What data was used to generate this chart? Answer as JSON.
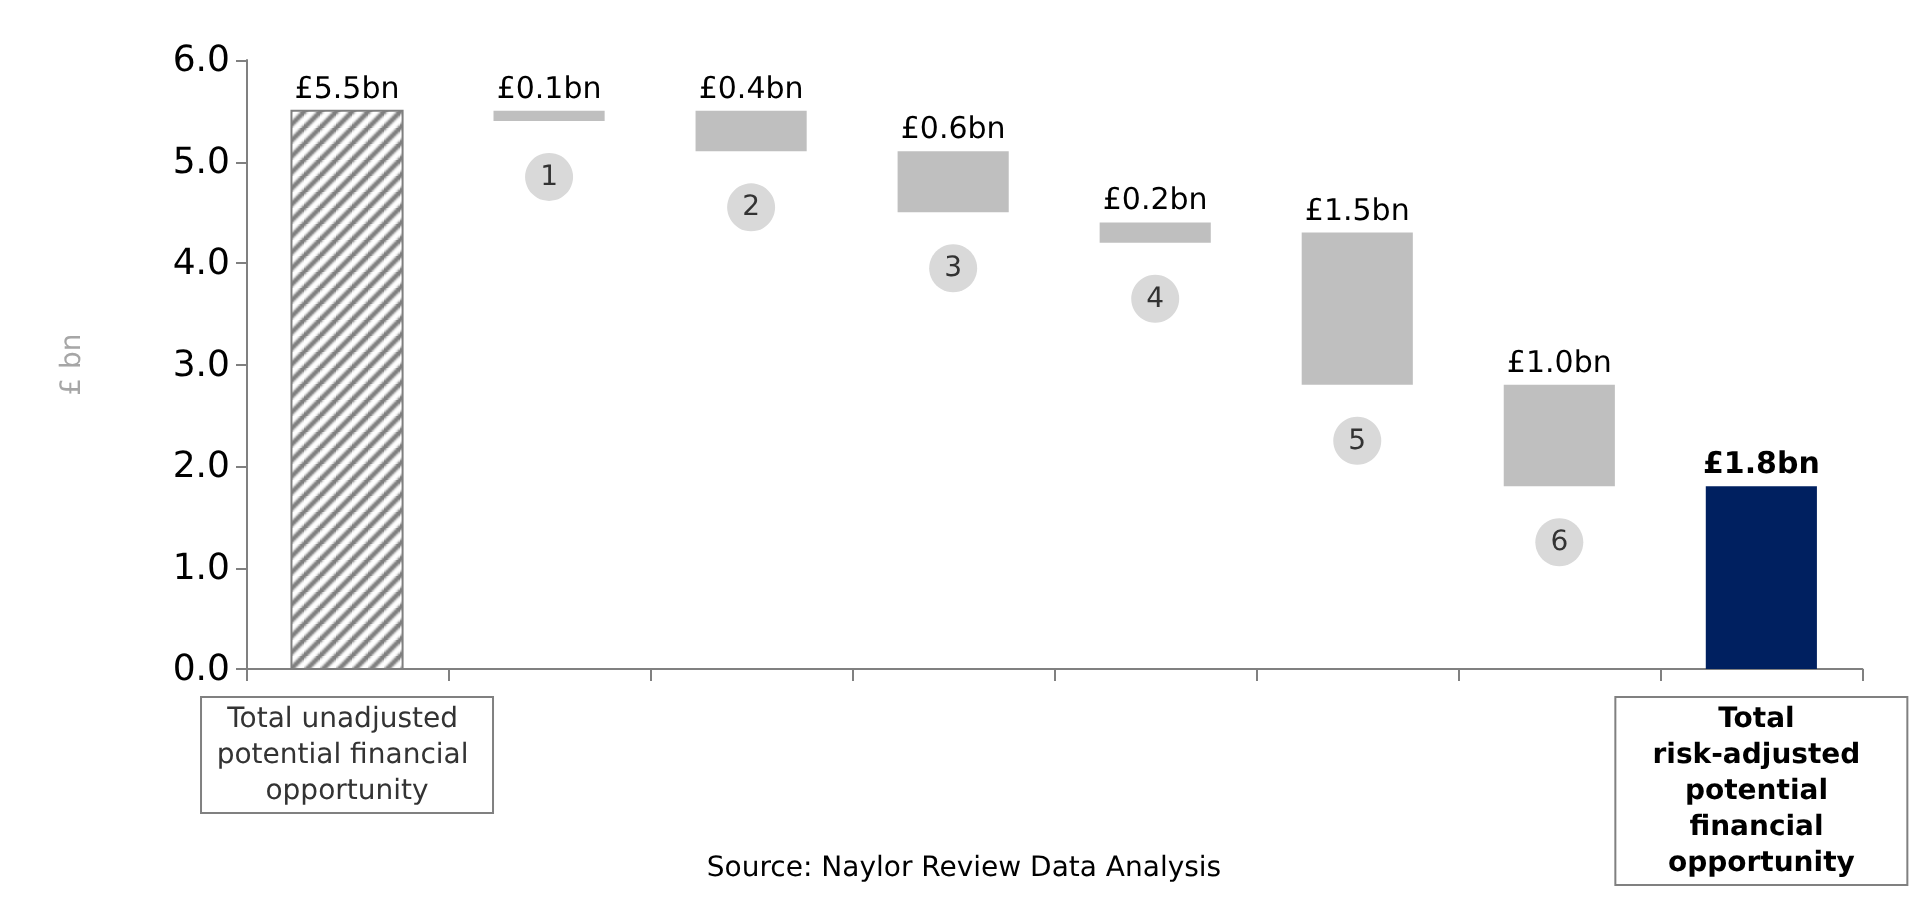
{
  "chart_data": {
    "type": "bar",
    "ylabel": "£ bn",
    "categories": [
      "Total unadjusted potential financial opportunity",
      "1",
      "2",
      "3",
      "4",
      "5",
      "6",
      "Total risk-adjusted potential financial opportunity"
    ],
    "values": [
      5.5,
      0.1,
      0.4,
      0.6,
      0.2,
      1.5,
      1.0,
      1.8
    ],
    "base": [
      0,
      5.4,
      5.1,
      4.5,
      4.2,
      2.8,
      1.8,
      0
    ],
    "value_labels": [
      "£5.5bn",
      "£0.1bn",
      "£0.4bn",
      "£0.6bn",
      "£0.2bn",
      "£1.5bn",
      "£1.0bn",
      "£1.8bn"
    ],
    "colors": [
      "#7f7f7f",
      "#bfbfbf",
      "#bfbfbf",
      "#bfbfbf",
      "#bfbfbf",
      "#bfbfbf",
      "#bfbfbf",
      "#002060"
    ],
    "ylim": [
      0,
      6
    ],
    "yticks": [
      {
        "value": 0,
        "label": "0.0"
      },
      {
        "value": 1,
        "label": "1.0"
      },
      {
        "value": 2,
        "label": "2.0"
      },
      {
        "value": 3,
        "label": "3.0"
      },
      {
        "value": 4,
        "label": "4.0"
      },
      {
        "value": 5,
        "label": "5.0"
      },
      {
        "value": 6,
        "label": "6.0"
      }
    ],
    "grid": false,
    "annotations": [
      "Source: Naylor Review Data Analysis"
    ]
  }
}
